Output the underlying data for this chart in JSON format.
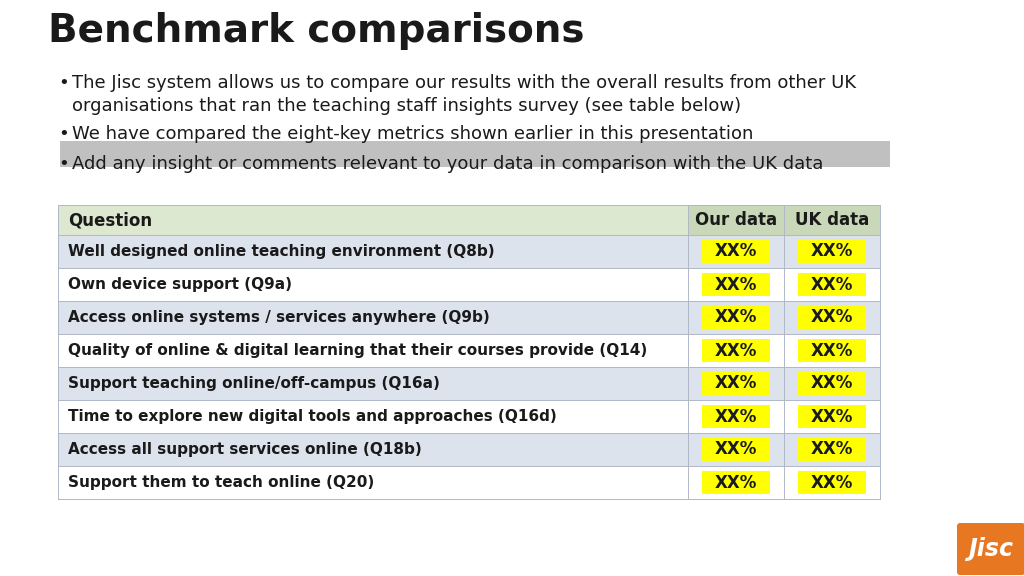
{
  "title": "Benchmark comparisons",
  "bullets": [
    "The Jisc system allows us to compare our results with the overall results from other UK\norganisations that ran the teaching staff insights survey (see table below)",
    "We have compared the eight-key metrics shown earlier in this presentation",
    "Add any insight or comments relevant to your data in comparison with the UK data"
  ],
  "table_header": [
    "Question",
    "Our data",
    "UK data"
  ],
  "table_rows": [
    "Well designed online teaching environment (Q8b)",
    "Own device support (Q9a)",
    "Access online systems / services anywhere (Q9b)",
    "Quality of online & digital learning that their courses provide (Q14)",
    "Support teaching online/off-campus (Q16a)",
    "Time to explore new digital tools and approaches (Q16d)",
    "Access all support services online (Q18b)",
    "Support them to teach online (Q20)"
  ],
  "cell_value": "XX%",
  "header_bg": "#dde8d0",
  "header_col2_bg": "#c8d8b8",
  "alt_row_bg": "#dce3ed",
  "white_row_bg": "#ffffff",
  "yellow_cell_bg": "#ffff00",
  "highlight_bg": "#c0c0c0",
  "title_color": "#1a1a1a",
  "text_color": "#1a1a1a",
  "jisc_orange": "#e87722",
  "jisc_text": "Jisc",
  "background": "#ffffff",
  "title_fontsize": 28,
  "bullet_fontsize": 13,
  "table_fontsize": 11,
  "header_fontsize": 12
}
